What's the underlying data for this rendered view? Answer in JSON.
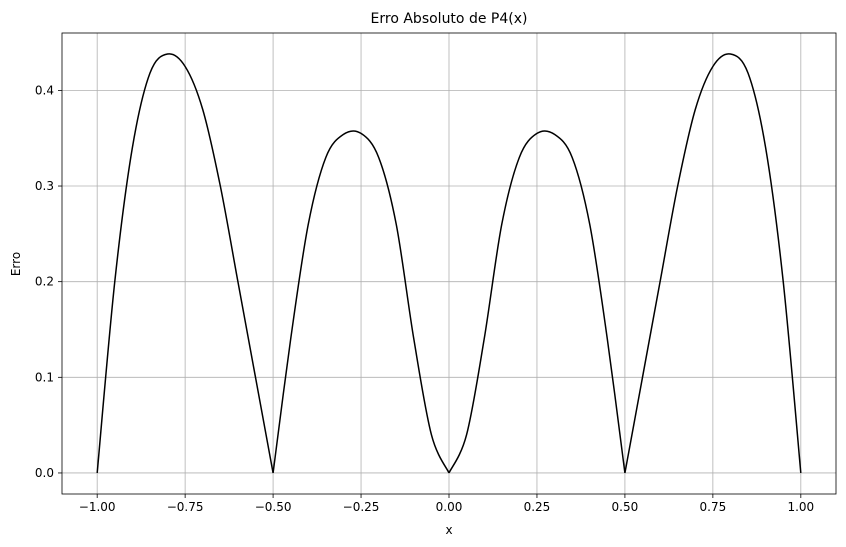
{
  "chart_data": {
    "type": "line",
    "title": "Erro Absoluto de P4(x)",
    "xlabel": "x",
    "ylabel": "Erro",
    "xlim": [
      -1.1,
      1.1
    ],
    "ylim": [
      -0.022,
      0.46
    ],
    "grid": true,
    "xticks": [
      -1.0,
      -0.75,
      -0.5,
      -0.25,
      0.0,
      0.25,
      0.5,
      0.75,
      1.0
    ],
    "xtick_labels": [
      "−1.00",
      "−0.75",
      "−0.50",
      "−0.25",
      "0.00",
      "0.25",
      "0.50",
      "0.75",
      "1.00"
    ],
    "yticks": [
      0.0,
      0.1,
      0.2,
      0.3,
      0.4
    ],
    "ytick_labels": [
      "0.0",
      "0.1",
      "0.2",
      "0.3",
      "0.4"
    ],
    "color": "#000000",
    "series": [
      {
        "x": [
          -1.0,
          -0.95,
          -0.9,
          -0.85,
          -0.8,
          -0.75,
          -0.7,
          -0.65,
          -0.6,
          -0.55,
          -0.5,
          -0.45,
          -0.4,
          -0.35,
          -0.3,
          -0.25,
          -0.2,
          -0.15,
          -0.1,
          -0.05,
          0.0,
          0.05,
          0.1,
          0.15,
          0.2,
          0.25,
          0.3,
          0.35,
          0.4,
          0.45,
          0.5,
          0.55,
          0.6,
          0.65,
          0.7,
          0.75,
          0.8,
          0.85,
          0.9,
          0.95,
          1.0
        ],
        "y": [
          0.0,
          0.2,
          0.34,
          0.418,
          0.438,
          0.425,
          0.38,
          0.3,
          0.2,
          0.1,
          0.0,
          0.14,
          0.26,
          0.33,
          0.354,
          0.355,
          0.33,
          0.26,
          0.14,
          0.04,
          0.0,
          0.04,
          0.14,
          0.26,
          0.33,
          0.355,
          0.354,
          0.33,
          0.26,
          0.14,
          0.0,
          0.1,
          0.2,
          0.3,
          0.38,
          0.425,
          0.438,
          0.418,
          0.34,
          0.2,
          0.0
        ]
      }
    ]
  }
}
